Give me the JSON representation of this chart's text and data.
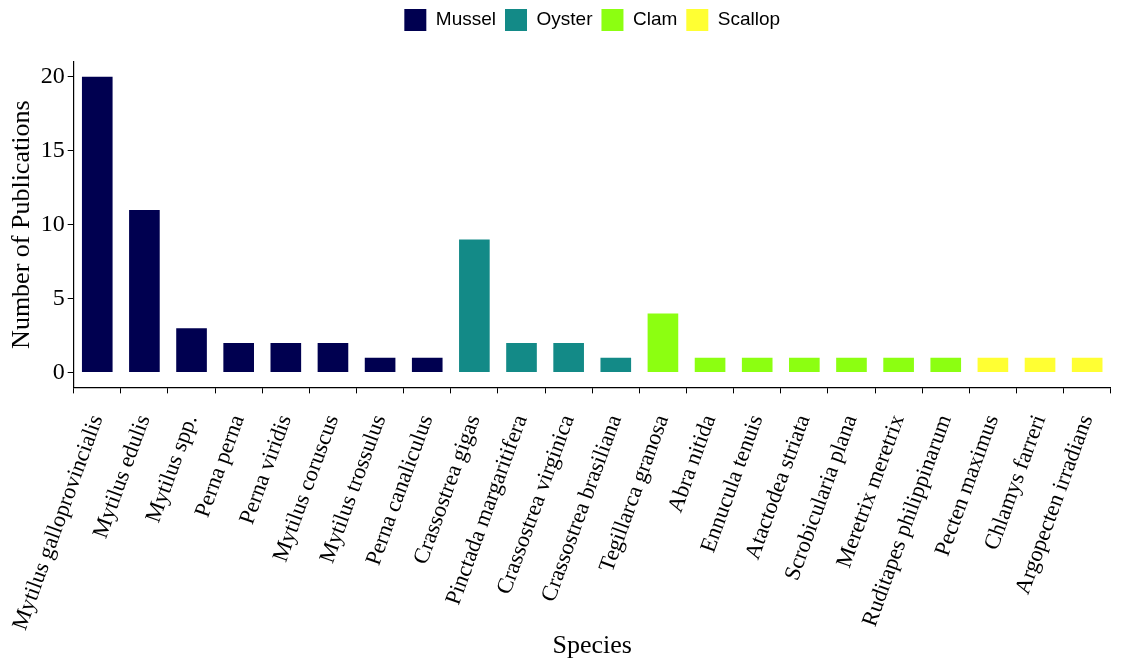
{
  "chart_data": {
    "type": "bar",
    "xlabel": "Species",
    "ylabel": "Number of Publications",
    "categories": [
      "Mytilus galloprovincialis",
      "Mytilus edulis",
      "Mytilus spp.",
      "Perna perna",
      "Perna viridis",
      "Mytilus coruscus",
      "Mytilus trossulus",
      "Perna canaliculus",
      "Crassostrea gigas",
      "Pinctada margaritifera",
      "Crassostrea virginica",
      "Crassostrea brasiliana",
      "Tegillarca granosa",
      "Abra nitida",
      "Ennucula tenuis",
      "Atactodea striata",
      "Scrobicularia plana",
      "Meretrix meretrix",
      "Ruditapes philippinarum",
      "Pecten maximus",
      "Chlamys farreri",
      "Argopecten irradians"
    ],
    "series": [
      {
        "name": "Mussel",
        "color": "#000050",
        "values": [
          20,
          11,
          3,
          2,
          2,
          2,
          1,
          1,
          null,
          null,
          null,
          null,
          null,
          null,
          null,
          null,
          null,
          null,
          null,
          null,
          null,
          null
        ]
      },
      {
        "name": "Oyster",
        "color": "#138a87",
        "values": [
          null,
          null,
          null,
          null,
          null,
          null,
          null,
          null,
          9,
          2,
          2,
          1,
          null,
          null,
          null,
          null,
          null,
          null,
          null,
          null,
          null,
          null
        ]
      },
      {
        "name": "Clam",
        "color": "#8cff11",
        "values": [
          null,
          null,
          null,
          null,
          null,
          null,
          null,
          null,
          null,
          null,
          null,
          null,
          4,
          1,
          1,
          1,
          1,
          1,
          1,
          null,
          null,
          null
        ]
      },
      {
        "name": "Scallop",
        "color": "#ffff33",
        "values": [
          null,
          null,
          null,
          null,
          null,
          null,
          null,
          null,
          null,
          null,
          null,
          null,
          null,
          null,
          null,
          null,
          null,
          null,
          null,
          1,
          1,
          1
        ]
      }
    ],
    "ylim": [
      -1,
      21
    ],
    "yticks": [
      0,
      5,
      10,
      15,
      20
    ],
    "grid": false,
    "legend": "top"
  }
}
